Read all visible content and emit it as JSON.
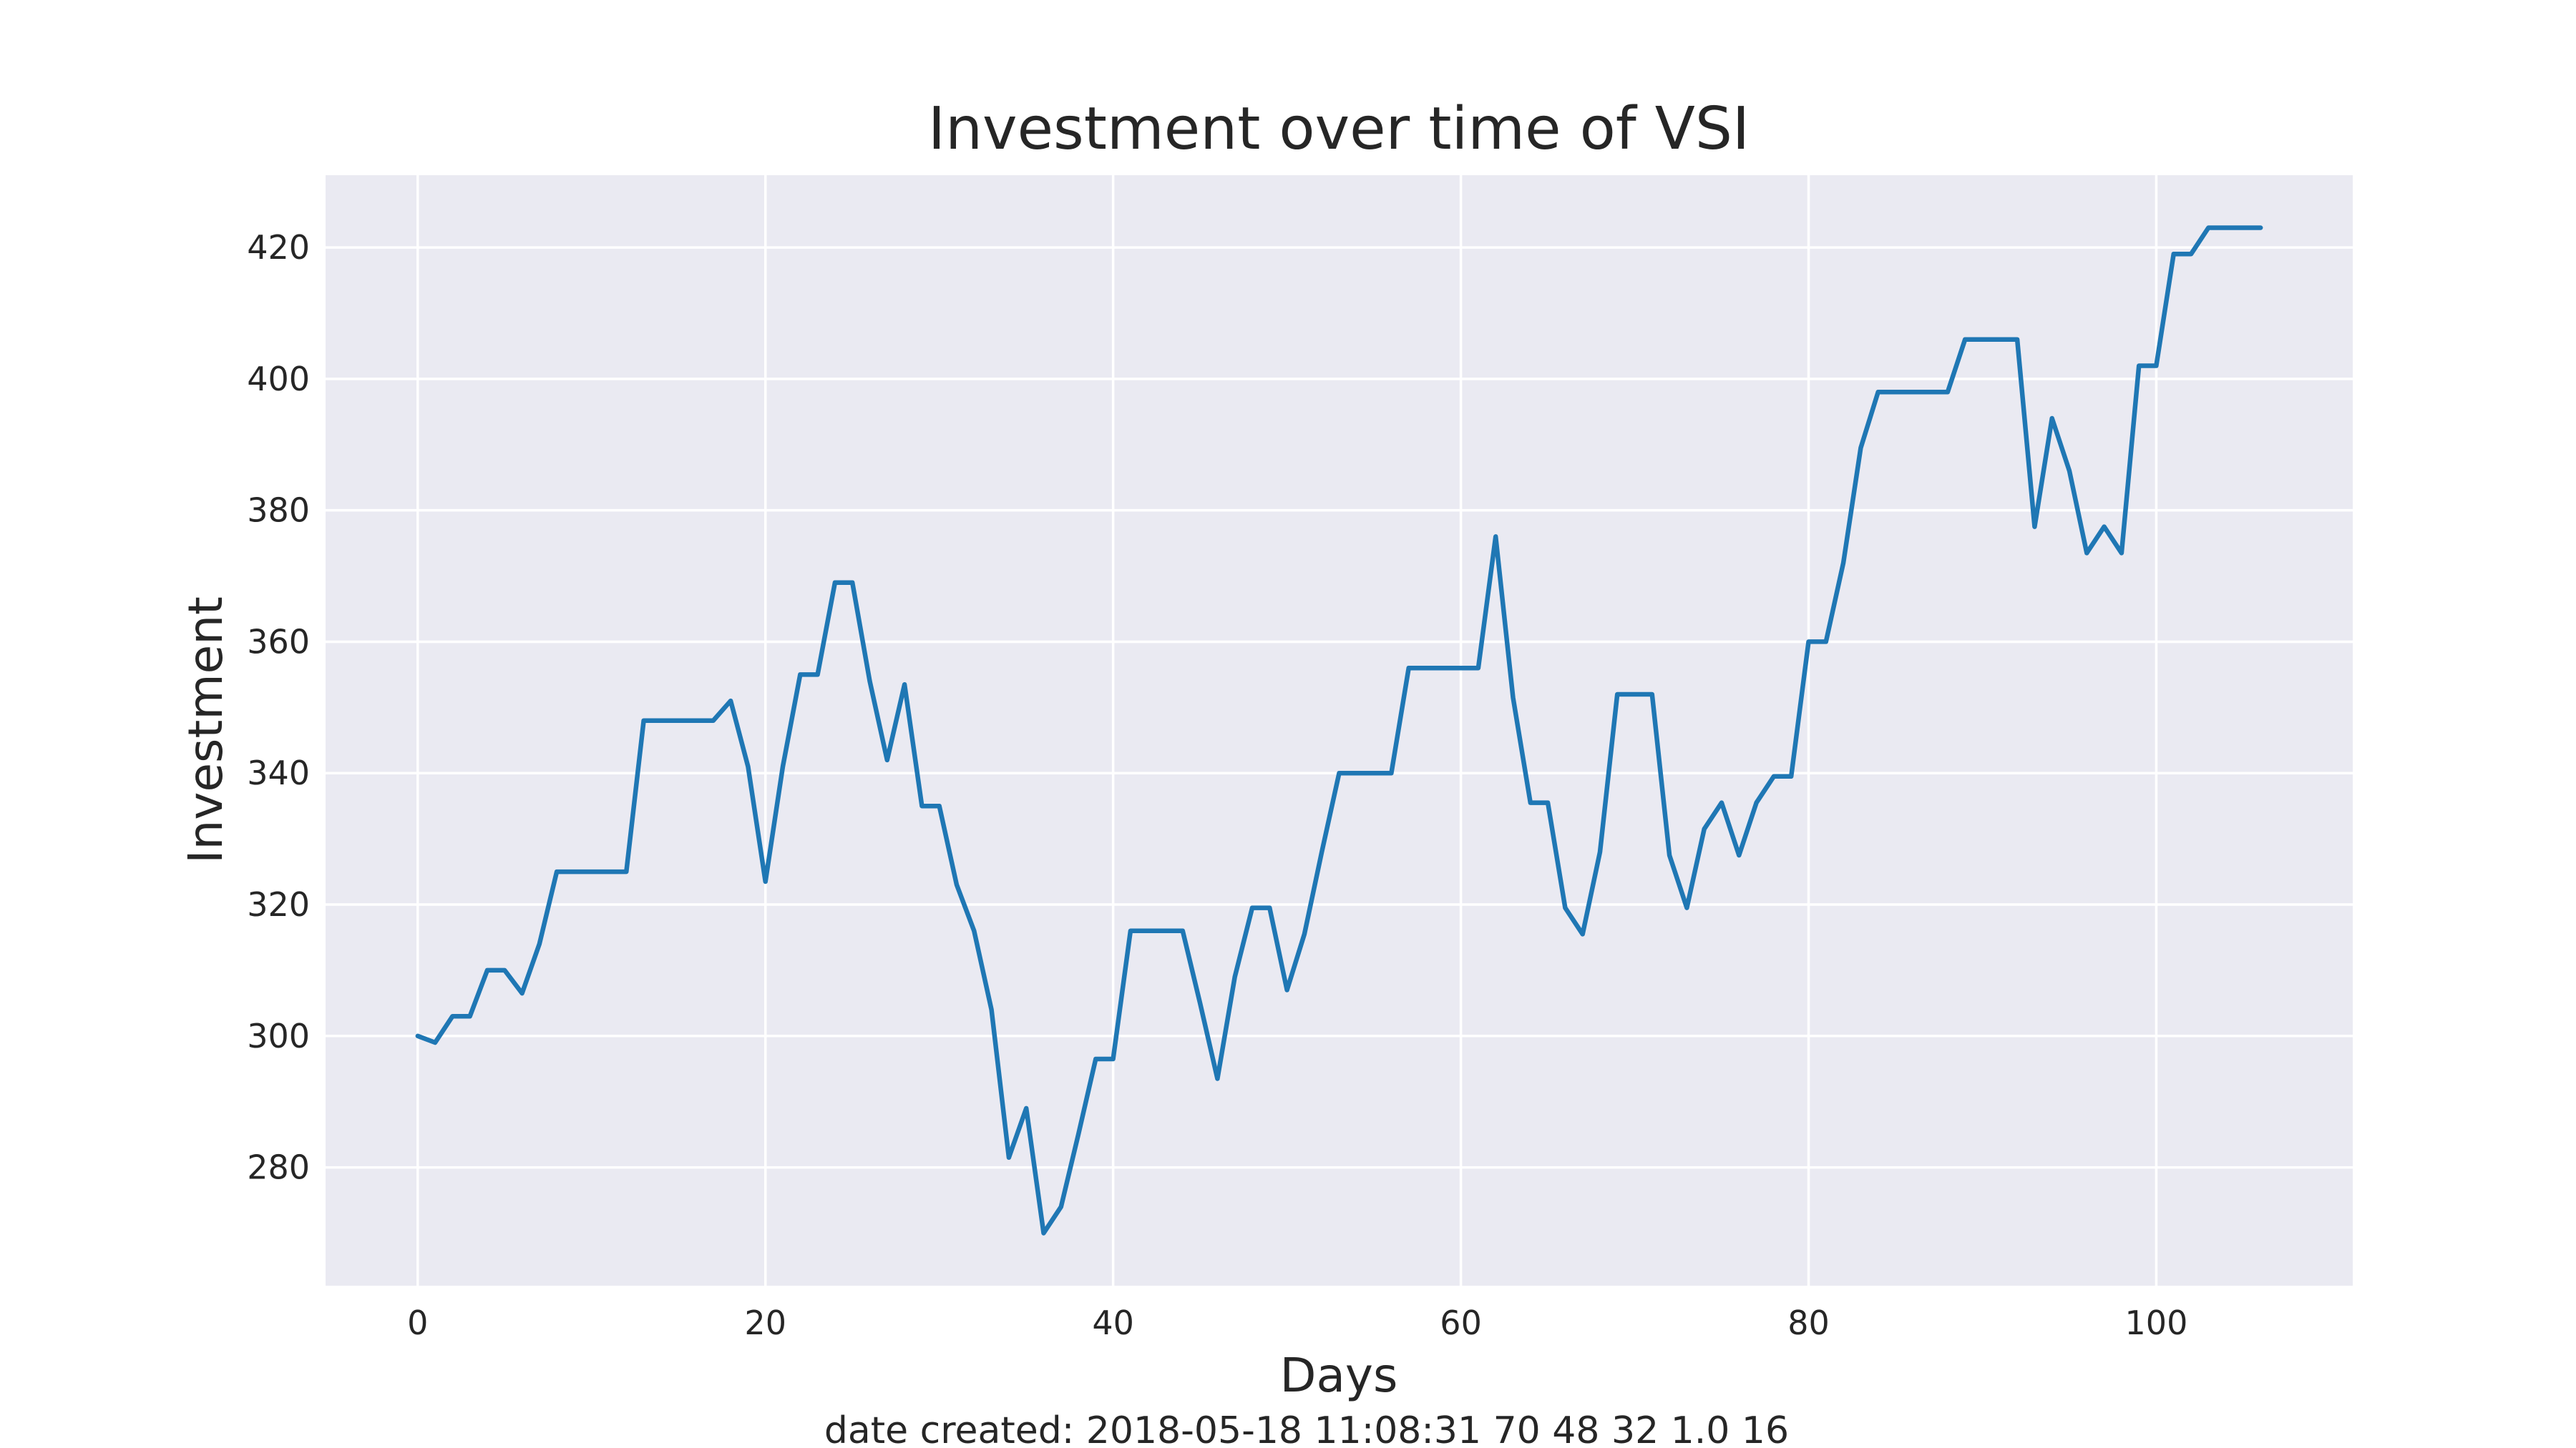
{
  "chart_data": {
    "type": "line",
    "title": "Investment over time of VSI",
    "xlabel": "Days",
    "ylabel": "Investment",
    "caption": "date created: 2018-05-18 11:08:31 70 48 32 1.0 16",
    "xlim": [
      -5.3,
      111.3
    ],
    "ylim": [
      262,
      431
    ],
    "xticks": [
      0,
      20,
      40,
      60,
      80,
      100
    ],
    "yticks": [
      280,
      300,
      320,
      340,
      360,
      380,
      400,
      420
    ],
    "grid": true,
    "style": {
      "background": "#EAEAF2",
      "grid_color": "#FFFFFF",
      "line_color": "#1F77B4"
    },
    "series": [
      {
        "x": [
          0,
          1,
          2,
          3,
          4,
          5,
          6,
          7,
          8,
          9,
          10,
          11,
          12,
          13,
          14,
          15,
          16,
          17,
          18,
          19,
          20,
          21,
          22,
          23,
          24,
          25,
          26,
          27,
          28,
          29,
          30,
          31,
          32,
          33,
          34,
          35,
          36,
          37,
          38,
          39,
          40,
          41,
          42,
          43,
          44,
          45,
          46,
          47,
          48,
          49,
          50,
          51,
          52,
          53,
          54,
          55,
          56,
          57,
          58,
          59,
          60,
          61,
          62,
          63,
          64,
          65,
          66,
          67,
          68,
          69,
          70,
          71,
          72,
          73,
          74,
          75,
          76,
          77,
          78,
          79,
          80,
          81,
          82,
          83,
          84,
          85,
          86,
          87,
          88,
          89,
          90,
          91,
          92,
          93,
          94,
          95,
          96,
          97,
          98,
          99,
          100,
          101,
          102,
          103,
          104,
          105,
          106
        ],
        "values": [
          300,
          299,
          303,
          303,
          310,
          310,
          306.5,
          314,
          325,
          325,
          325,
          325,
          325,
          348,
          348,
          348,
          348,
          348,
          351,
          341,
          323.5,
          341,
          355,
          355,
          369,
          369,
          354,
          342,
          353.5,
          335,
          335,
          323,
          316,
          304,
          281.5,
          289,
          270,
          274,
          285,
          296.5,
          296.5,
          316,
          316,
          316,
          316,
          305,
          293.5,
          309,
          319.5,
          319.5,
          307,
          315.5,
          328,
          340,
          340,
          340,
          340,
          356,
          356,
          356,
          356,
          356,
          376,
          351.5,
          335.5,
          335.5,
          319.5,
          315.5,
          328,
          352,
          352,
          352,
          327.5,
          319.5,
          331.5,
          335.5,
          327.5,
          335.5,
          339.5,
          339.5,
          360,
          360,
          372,
          389.5,
          398,
          398,
          398,
          398,
          398,
          406,
          406,
          406,
          406,
          377.5,
          394,
          386,
          373.5,
          377.5,
          373.5,
          402,
          402,
          419,
          419,
          423,
          423,
          423,
          423
        ]
      }
    ]
  }
}
